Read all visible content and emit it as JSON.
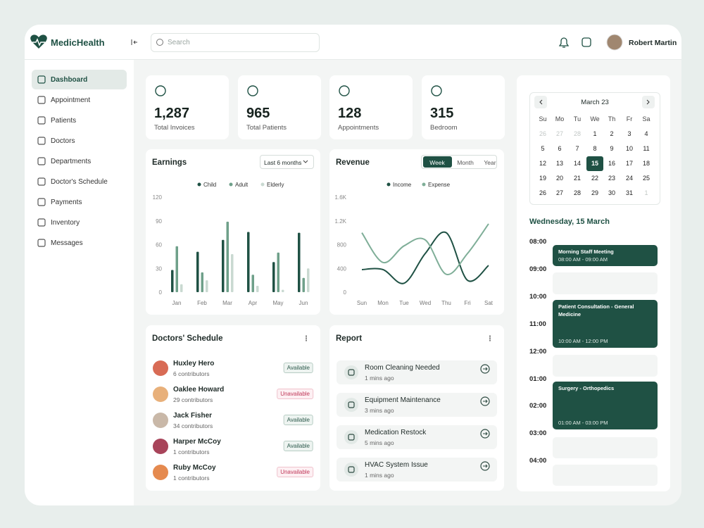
{
  "brand": "MedicHealth",
  "search_placeholder": "Search",
  "user": {
    "name": "Robert Martin"
  },
  "nav": {
    "items": [
      "Dashboard",
      "Appointment",
      "Patients",
      "Doctors",
      "Departments",
      "Doctor's Schedule",
      "Payments",
      "Inventory",
      "Messages"
    ],
    "active": 0
  },
  "stats": [
    {
      "value": "1,287",
      "label": "Total Invoices"
    },
    {
      "value": "965",
      "label": "Total Patients"
    },
    {
      "value": "128",
      "label": "Appointments"
    },
    {
      "value": "315",
      "label": "Bedroom"
    }
  ],
  "earnings": {
    "title": "Earnings",
    "range": "Last 6 months",
    "chart": {
      "type": "bar",
      "categories": [
        "Jan",
        "Feb",
        "Mar",
        "Apr",
        "May",
        "Jun"
      ],
      "series": [
        {
          "name": "Child",
          "color": "#1f5144",
          "values": [
            28,
            51,
            66,
            76,
            38,
            75
          ]
        },
        {
          "name": "Adult",
          "color": "#6fa08a",
          "values": [
            58,
            25,
            89,
            22,
            50,
            18
          ]
        },
        {
          "name": "Elderly",
          "color": "#c9d9d1",
          "values": [
            10,
            15,
            48,
            8,
            3,
            30
          ]
        }
      ],
      "ylim": [
        0,
        120
      ],
      "yticks": [
        0,
        30,
        60,
        90,
        120
      ]
    }
  },
  "revenue": {
    "title": "Revenue",
    "tabs": [
      "Week",
      "Month",
      "Year"
    ],
    "active_tab": 0,
    "chart": {
      "type": "line",
      "categories": [
        "Sun",
        "Mon",
        "Tue",
        "Wed",
        "Thu",
        "Fri",
        "Sat"
      ],
      "series": [
        {
          "name": "Income",
          "color": "#1f5144",
          "values": [
            380,
            380,
            150,
            650,
            1000,
            200,
            450
          ]
        },
        {
          "name": "Expense",
          "color": "#7fae98",
          "values": [
            1000,
            500,
            780,
            880,
            300,
            650,
            1150
          ]
        }
      ],
      "ylim": [
        0,
        1600
      ],
      "yticks": [
        0,
        400,
        800,
        {
          "value": 1200,
          "label": "1.2K"
        },
        {
          "value": 1600,
          "label": "1.6K"
        }
      ]
    }
  },
  "doctors": {
    "title": "Doctors' Schedule",
    "rows": [
      {
        "name": "Huxley Hero",
        "contributors": "6 contributors",
        "status": "Available"
      },
      {
        "name": "Oaklee Howard",
        "contributors": "29 contributors",
        "status": "Unavailable"
      },
      {
        "name": "Jack Fisher",
        "contributors": "34 contributors",
        "status": "Available"
      },
      {
        "name": "Harper McCoy",
        "contributors": "1 contributors",
        "status": "Available"
      },
      {
        "name": "Ruby McCoy",
        "contributors": "1 contributors",
        "status": "Unavailable"
      }
    ]
  },
  "report": {
    "title": "Report",
    "items": [
      {
        "title": "Room Cleaning Needed",
        "time": "1 mins ago"
      },
      {
        "title": "Equipment Maintenance",
        "time": "3 mins ago"
      },
      {
        "title": "Medication Restock",
        "time": "5 mins ago"
      },
      {
        "title": "HVAC System Issue",
        "time": "1 mins ago"
      }
    ]
  },
  "calendar": {
    "month": "March 23",
    "weekdays": [
      "Su",
      "Mo",
      "Tu",
      "We",
      "Th",
      "Fr",
      "Sa"
    ],
    "leading_days": [
      26,
      27,
      28
    ],
    "days": [
      1,
      2,
      3,
      4,
      5,
      6,
      7,
      8,
      9,
      10,
      11,
      12,
      13,
      14,
      15,
      16,
      17,
      18,
      19,
      20,
      21,
      22,
      23,
      24,
      25,
      26,
      27,
      28,
      29,
      30,
      31
    ],
    "trailing_days": [
      1
    ],
    "selected": 15
  },
  "schedule": {
    "title": "Wednesday, 15 March",
    "times": [
      "08:00",
      "09:00",
      "10:00",
      "11:00",
      "12:00",
      "01:00",
      "02:00",
      "03:00",
      "04:00"
    ],
    "events": [
      {
        "title": "Morning Staff Meeting",
        "time": "08:00 AM - 09:00 AM"
      },
      {
        "title": "Patient Consultation - General Medicine",
        "time": "10:00 AM - 12:00 PM"
      },
      {
        "title": "Surgery - Orthopedics",
        "time": "01:00 AM - 03:00 PM"
      }
    ]
  }
}
